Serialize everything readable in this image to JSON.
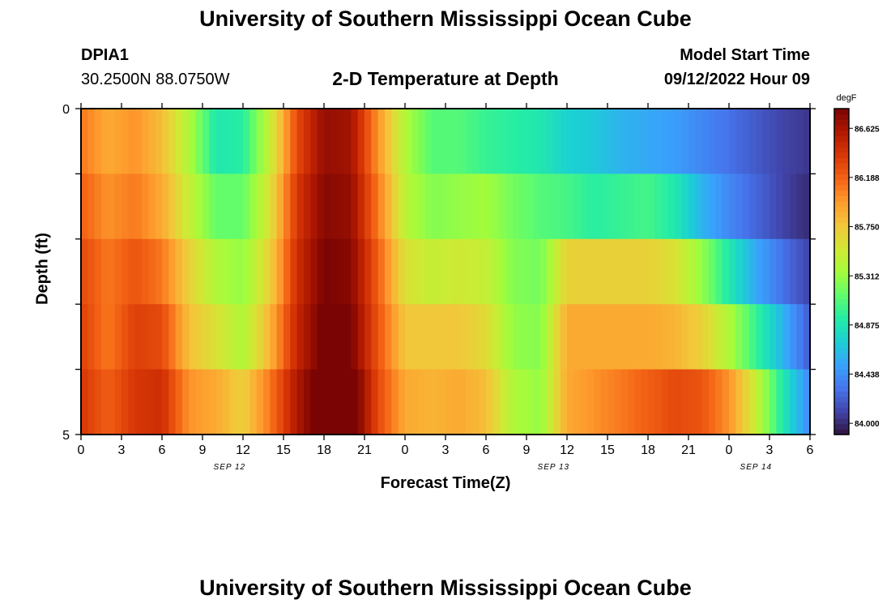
{
  "header": {
    "title": "University of Southern Mississippi Ocean Cube",
    "station_id": "DPIA1",
    "station_coords": "30.2500N  88.0750W",
    "plot_title": "2-D Temperature at Depth",
    "model_start_label": "Model Start Time",
    "model_start_value": "09/12/2022 Hour 09"
  },
  "footer": {
    "title": "University of Southern Mississippi Ocean Cube"
  },
  "chart_data": {
    "type": "heatmap",
    "title": "2-D Temperature at Depth",
    "xlabel": "Forecast Time(Z)",
    "ylabel": "Depth (ft)",
    "x_tick_labels": [
      "0",
      "3",
      "6",
      "9",
      "12",
      "15",
      "18",
      "21",
      "0",
      "3",
      "6",
      "9",
      "12",
      "15",
      "18",
      "21",
      "0",
      "3",
      "6"
    ],
    "x_date_labels": [
      {
        "label": "SEP 12",
        "at_hour": 11
      },
      {
        "label": "SEP 13",
        "at_hour": 35
      },
      {
        "label": "SEP 14",
        "at_hour": 50
      }
    ],
    "x_range_hours": [
      0,
      54
    ],
    "y_tick_labels": [
      "0",
      "5"
    ],
    "y_range_ft": [
      0,
      5
    ],
    "colorbar": {
      "unit": "degF",
      "tick_labels": [
        "86.625",
        "86.188",
        "85.750",
        "85.312",
        "84.875",
        "84.438",
        "84.000"
      ],
      "tick_values": [
        86.625,
        86.188,
        85.75,
        85.312,
        84.875,
        84.438,
        84.0
      ],
      "range": [
        83.9,
        86.8
      ],
      "colormap": [
        "#30123b",
        "#4145ab",
        "#4675ed",
        "#39a2fc",
        "#1bcfd4",
        "#24eca6",
        "#61fc6c",
        "#a4fc3b",
        "#d1e834",
        "#f3c63a",
        "#fe9b2d",
        "#f36315",
        "#d93806",
        "#b11901",
        "#7a0403"
      ]
    },
    "depth_levels_ft": [
      0.5,
      1.5,
      2.5,
      3.5,
      4.5
    ],
    "time_hours": [
      0,
      2,
      4,
      6,
      8,
      10,
      12,
      14,
      16,
      18,
      20,
      22,
      24,
      26,
      28,
      30,
      32,
      34,
      36,
      38,
      40,
      42,
      44,
      46,
      48,
      50,
      52,
      54
    ],
    "values_degF": [
      [
        86.1,
        85.9,
        86.0,
        85.8,
        85.4,
        84.9,
        84.95,
        85.5,
        86.3,
        86.7,
        86.65,
        86.0,
        85.4,
        85.1,
        85.1,
        85.0,
        84.95,
        84.9,
        84.75,
        84.7,
        84.6,
        84.55,
        84.5,
        84.4,
        84.3,
        84.2,
        84.1,
        84.05
      ],
      [
        86.2,
        86.0,
        86.1,
        85.9,
        85.5,
        85.15,
        85.15,
        85.6,
        86.4,
        86.75,
        86.7,
        86.1,
        85.45,
        85.25,
        85.3,
        85.35,
        85.2,
        85.1,
        85.05,
        84.95,
        85.0,
        85.05,
        84.9,
        84.6,
        84.4,
        84.25,
        84.1,
        84.0
      ],
      [
        86.3,
        86.1,
        86.25,
        86.1,
        85.7,
        85.4,
        85.3,
        85.7,
        86.45,
        86.8,
        86.75,
        86.2,
        85.6,
        85.5,
        85.55,
        85.5,
        85.25,
        85.2,
        85.7,
        85.7,
        85.7,
        85.7,
        85.6,
        85.3,
        84.9,
        84.55,
        84.3,
        84.1
      ],
      [
        86.35,
        86.1,
        86.35,
        86.3,
        85.8,
        85.6,
        85.4,
        85.85,
        86.5,
        86.85,
        86.8,
        86.25,
        85.75,
        85.75,
        85.75,
        85.65,
        85.3,
        85.25,
        85.9,
        85.9,
        85.9,
        85.9,
        85.85,
        85.7,
        85.4,
        85.0,
        84.6,
        84.2
      ],
      [
        86.4,
        86.2,
        86.4,
        86.45,
        86.0,
        85.9,
        85.7,
        86.1,
        86.6,
        86.95,
        86.95,
        86.3,
        85.9,
        85.85,
        85.9,
        85.8,
        85.4,
        85.3,
        85.9,
        86.0,
        86.1,
        86.2,
        86.3,
        86.25,
        86.0,
        85.5,
        84.9,
        84.4
      ]
    ]
  }
}
